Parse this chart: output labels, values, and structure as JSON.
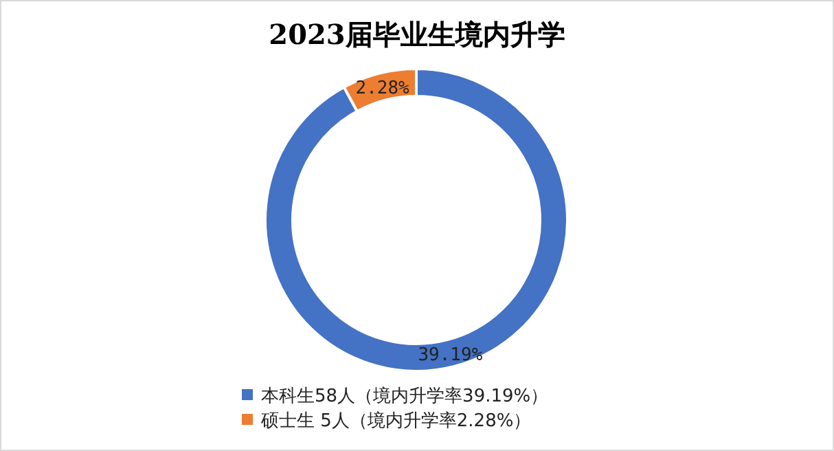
{
  "chart_data": {
    "type": "donut",
    "title": "2023届毕业生境内升学",
    "categories": [
      "本科生58人（境内升学率39.19%）",
      "硕士生 5人（境内升学率2.28%）"
    ],
    "values": [
      58,
      5
    ],
    "colors": [
      "#4472c4",
      "#ed7d31"
    ],
    "annotations": [
      "39.19%",
      "2.28%"
    ],
    "legend": "bottom"
  }
}
